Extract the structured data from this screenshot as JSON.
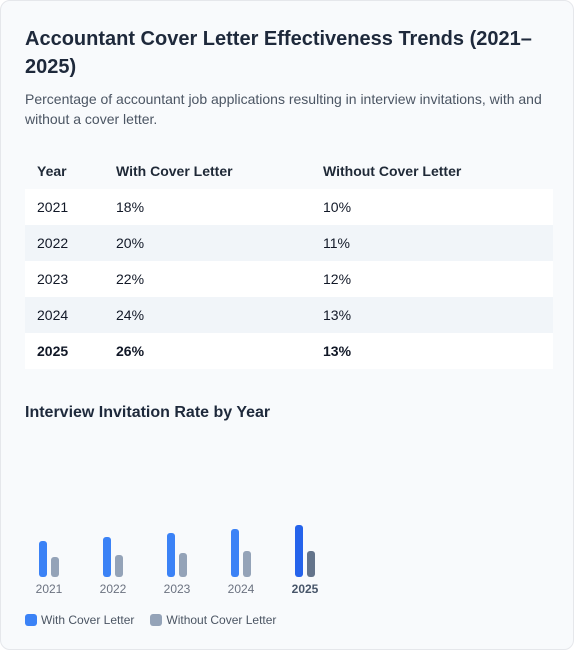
{
  "title": "Accountant Cover Letter Effectiveness Trends (2021–2025)",
  "subtitle": "Percentage of accountant job applications resulting in interview invitations, with and without a cover letter.",
  "table": {
    "headers": [
      "Year",
      "With Cover Letter",
      "Without Cover Letter"
    ],
    "rows": [
      {
        "year": "2021",
        "with": "18%",
        "without": "10%"
      },
      {
        "year": "2022",
        "with": "20%",
        "without": "11%"
      },
      {
        "year": "2023",
        "with": "22%",
        "without": "12%"
      },
      {
        "year": "2024",
        "with": "24%",
        "without": "13%"
      },
      {
        "year": "2025",
        "with": "26%",
        "without": "13%"
      }
    ]
  },
  "colors": {
    "with": "#3b82f6",
    "without": "#94a3b8",
    "with_latest": "#2563eb",
    "without_latest": "#64748b",
    "good_text": "#15803d",
    "bad_text": "#b91c1c"
  },
  "chart_data": {
    "type": "bar",
    "title": "Interview Invitation Rate by Year",
    "categories": [
      "2021",
      "2022",
      "2023",
      "2024",
      "2025"
    ],
    "series": [
      {
        "name": "With Cover Letter",
        "values": [
          18,
          20,
          22,
          24,
          26
        ]
      },
      {
        "name": "Without Cover Letter",
        "values": [
          10,
          11,
          12,
          13,
          13
        ]
      }
    ],
    "highlight_category": "2025",
    "legend_position": "bottom-left",
    "grid": false,
    "ylim": [
      0,
      50
    ]
  }
}
